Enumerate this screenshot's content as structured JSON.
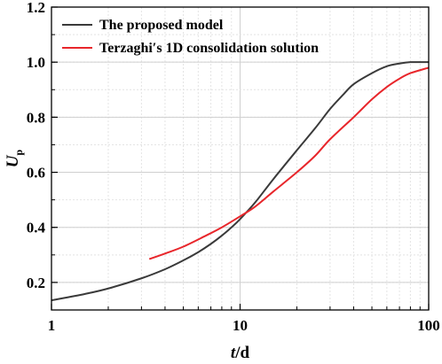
{
  "chart_data": {
    "type": "line",
    "title": "",
    "xlabel": {
      "italic": "t",
      "rest": "/d"
    },
    "ylabel": {
      "main": "U",
      "sub": "p"
    },
    "xscale": "log",
    "xlim": [
      1,
      100
    ],
    "ylim": [
      0.1,
      1.2
    ],
    "x_ticks": [
      {
        "value": 1,
        "label": "1"
      },
      {
        "value": 10,
        "label": "10"
      },
      {
        "value": 100,
        "label": "100"
      }
    ],
    "y_ticks": [
      {
        "value": 0.2,
        "label": "0.2"
      },
      {
        "value": 0.4,
        "label": "0.4"
      },
      {
        "value": 0.6,
        "label": "0.6"
      },
      {
        "value": 0.8,
        "label": "0.8"
      },
      {
        "value": 1.0,
        "label": "1.0"
      },
      {
        "value": 1.2,
        "label": "1.2"
      }
    ],
    "grid": true,
    "legend_position": "top-left",
    "series": [
      {
        "name": "The proposed model",
        "color": "#3a3a3a",
        "points": [
          [
            1,
            0.135
          ],
          [
            1.5,
            0.158
          ],
          [
            2,
            0.178
          ],
          [
            3,
            0.215
          ],
          [
            4,
            0.248
          ],
          [
            5,
            0.28
          ],
          [
            6,
            0.31
          ],
          [
            7,
            0.34
          ],
          [
            8,
            0.37
          ],
          [
            9,
            0.4
          ],
          [
            10,
            0.43
          ],
          [
            12,
            0.49
          ],
          [
            15,
            0.575
          ],
          [
            20,
            0.68
          ],
          [
            25,
            0.76
          ],
          [
            30,
            0.83
          ],
          [
            35,
            0.88
          ],
          [
            40,
            0.92
          ],
          [
            50,
            0.96
          ],
          [
            60,
            0.985
          ],
          [
            70,
            0.995
          ],
          [
            80,
            1.0
          ],
          [
            100,
            1.0
          ]
        ]
      },
      {
        "name": "Terzaghi′s 1D consolidation solution",
        "color": "#e8262b",
        "points": [
          [
            3.3,
            0.285
          ],
          [
            4,
            0.305
          ],
          [
            5,
            0.33
          ],
          [
            6.5,
            0.368
          ],
          [
            8,
            0.4
          ],
          [
            10,
            0.44
          ],
          [
            12,
            0.475
          ],
          [
            15,
            0.53
          ],
          [
            20,
            0.6
          ],
          [
            25,
            0.66
          ],
          [
            30,
            0.72
          ],
          [
            40,
            0.8
          ],
          [
            50,
            0.865
          ],
          [
            60,
            0.91
          ],
          [
            70,
            0.94
          ],
          [
            80,
            0.96
          ],
          [
            100,
            0.98
          ]
        ]
      }
    ]
  }
}
